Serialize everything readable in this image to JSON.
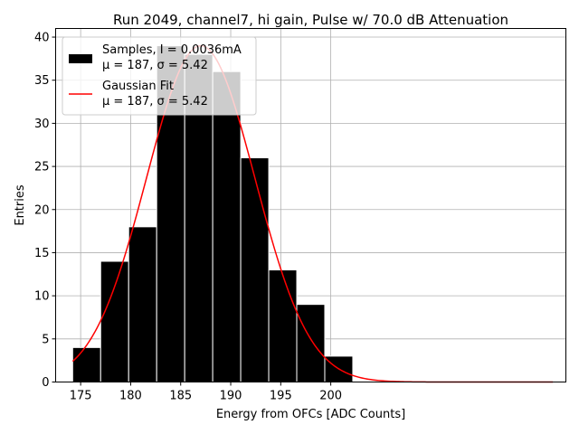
{
  "chart_data": {
    "type": "bar",
    "title": "Run 2049, channel7, hi gain, Pulse w/ 70.0 dB Attenuation",
    "xlabel": "Energy from OFCs [ADC Counts]",
    "ylabel": "Entries",
    "xlim": [
      172.5,
      223.5
    ],
    "ylim": [
      0,
      41
    ],
    "x_ticks": [
      175,
      180,
      185,
      190,
      195,
      200
    ],
    "x_tick_labels": [
      "175",
      "180",
      "185",
      "190",
      "195",
      "200"
    ],
    "y_ticks": [
      0,
      5,
      10,
      15,
      20,
      25,
      30,
      35,
      40
    ],
    "y_tick_labels": [
      "0",
      "5",
      "10",
      "15",
      "20",
      "25",
      "30",
      "35",
      "40"
    ],
    "grid": true,
    "bins": [
      {
        "start": 174.2,
        "end": 177.0,
        "count": 4
      },
      {
        "start": 177.0,
        "end": 179.8,
        "count": 14
      },
      {
        "start": 179.8,
        "end": 182.6,
        "count": 18
      },
      {
        "start": 182.6,
        "end": 185.4,
        "count": 39
      },
      {
        "start": 185.4,
        "end": 188.2,
        "count": 38
      },
      {
        "start": 188.2,
        "end": 191.0,
        "count": 36
      },
      {
        "start": 191.0,
        "end": 193.8,
        "count": 26
      },
      {
        "start": 193.8,
        "end": 196.6,
        "count": 13
      },
      {
        "start": 196.6,
        "end": 199.4,
        "count": 9
      },
      {
        "start": 199.4,
        "end": 202.2,
        "count": 3
      }
    ],
    "series": [
      {
        "name": "Samples",
        "type": "histogram",
        "color": "#000000"
      },
      {
        "name": "Gaussian Fit",
        "type": "line",
        "color": "#ff0000",
        "amplitude": 39,
        "mu": 187,
        "sigma": 5.42,
        "x_range": [
          174.2,
          222.2
        ]
      }
    ],
    "legend": {
      "position": "top-left",
      "entries": [
        {
          "line1": "Samples, I = 0.0036mA",
          "line2": "μ = 187, σ = 5.42",
          "color": "#000000",
          "kind": "patch"
        },
        {
          "line1": "Gaussian Fit",
          "line2": "μ = 187, σ = 5.42",
          "color": "#ff0000",
          "kind": "line"
        }
      ]
    }
  }
}
